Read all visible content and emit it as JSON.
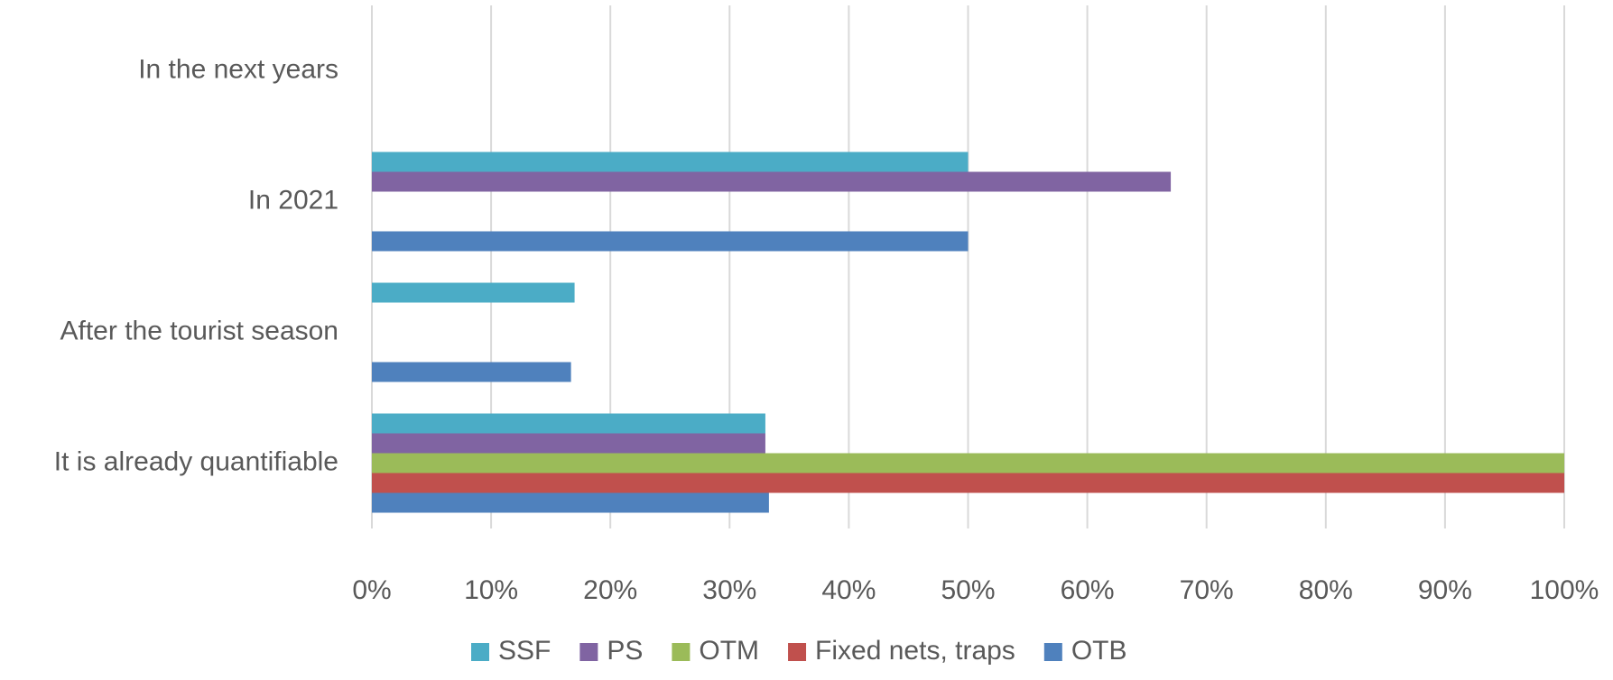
{
  "chart_data": {
    "type": "hbar",
    "categories": [
      "In the next years",
      "In 2021",
      "After the tourist season",
      "It is already quantifiable"
    ],
    "series": [
      {
        "name": "SSF",
        "color": "#4bacc6",
        "values": [
          null,
          50,
          17,
          33
        ]
      },
      {
        "name": "PS",
        "color": "#8064a2",
        "values": [
          null,
          67,
          null,
          33
        ]
      },
      {
        "name": "OTM",
        "color": "#9bbb59",
        "values": [
          null,
          null,
          null,
          100
        ]
      },
      {
        "name": "Fixed nets, traps",
        "color": "#c0504d",
        "values": [
          null,
          null,
          null,
          100
        ]
      },
      {
        "name": "OTB",
        "color": "#4f81bd",
        "values": [
          null,
          50,
          16.7,
          33.3
        ]
      }
    ],
    "xlim": [
      0,
      100
    ],
    "xticks": [
      {
        "value": 0,
        "label": "0%"
      },
      {
        "value": 10,
        "label": "10%"
      },
      {
        "value": 20,
        "label": "20%"
      },
      {
        "value": 30,
        "label": "30%"
      },
      {
        "value": 40,
        "label": "40%"
      },
      {
        "value": 50,
        "label": "50%"
      },
      {
        "value": 60,
        "label": "60%"
      },
      {
        "value": 70,
        "label": "70%"
      },
      {
        "value": 80,
        "label": "80%"
      },
      {
        "value": 90,
        "label": "90%"
      },
      {
        "value": 100,
        "label": "100%"
      }
    ],
    "grid": true,
    "legend": "bottom"
  }
}
